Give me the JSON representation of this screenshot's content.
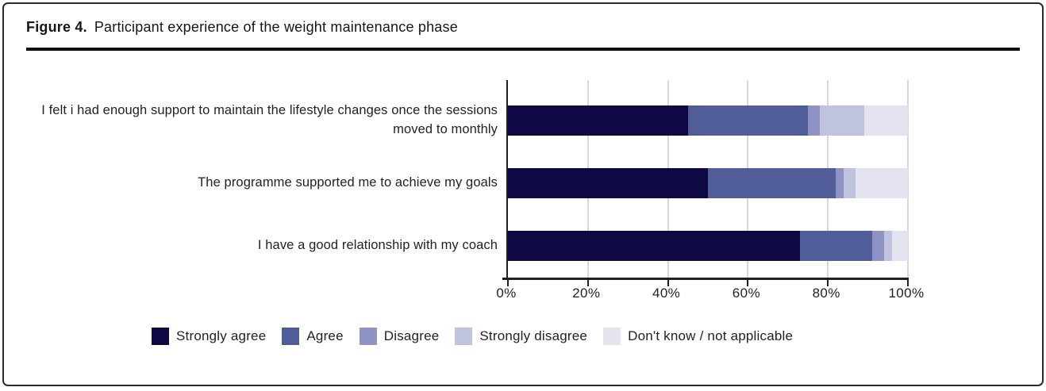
{
  "figure": {
    "label": "Figure 4.",
    "title": "Participant experience of the weight maintenance phase"
  },
  "chart_data": {
    "type": "bar",
    "orientation": "horizontal",
    "stacked": true,
    "title": "Participant experience of the weight maintenance phase",
    "categories": [
      "I felt i had enough support to maintain the lifestyle changes once the sessions moved to monthly",
      "The programme supported me to achieve my goals",
      "I have a good relationship with my coach"
    ],
    "series": [
      {
        "name": "Strongly agree",
        "color": "#0e0843",
        "values": [
          45,
          50,
          73
        ]
      },
      {
        "name": "Agree",
        "color": "#515d98",
        "values": [
          30,
          32,
          18
        ]
      },
      {
        "name": "Disagree",
        "color": "#8d93c4",
        "values": [
          3,
          2,
          3
        ]
      },
      {
        "name": "Strongly disagree",
        "color": "#bfc3de",
        "values": [
          11,
          3,
          2
        ]
      },
      {
        "name": "Don't know / not applicable",
        "color": "#e3e4f0",
        "values": [
          11,
          13,
          4
        ]
      }
    ],
    "x_axis": {
      "min": 0,
      "max": 100,
      "unit": "%",
      "ticks": [
        "0%",
        "20%",
        "40%",
        "60%",
        "80%",
        "100%"
      ]
    },
    "grid": true,
    "legend_position": "bottom",
    "colors": {
      "axis": "#231f20",
      "gridline": "#d8d8d8",
      "text": "#231f20"
    }
  }
}
